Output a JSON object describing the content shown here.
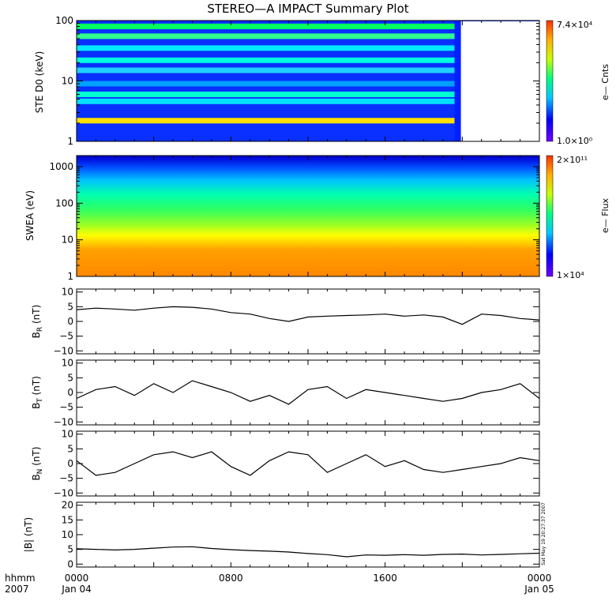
{
  "title": "STEREO—A IMPACT Summary Plot",
  "footer": {
    "row_label_1": "hhmm",
    "row_label_2": "2007"
  },
  "timestamp": "Sat May 19 20:27:37 2007",
  "chart_data": [
    {
      "type": "heatmap",
      "id": "ste",
      "ylabel": "STE D0 (keV)",
      "yscale": "log",
      "ylim": [
        1,
        100
      ],
      "yticks": [
        "1",
        "10",
        "100"
      ],
      "colorbar": {
        "label": "e— Cnts",
        "max": "7.4×10⁴",
        "min": "1.0×10⁰",
        "colormap": "rainbow"
      },
      "bands_keV": [
        2.2,
        4.6,
        6.0,
        9.0,
        15,
        22,
        35,
        55,
        80
      ],
      "data_gap_start_hour": 19.6
    },
    {
      "type": "heatmap",
      "id": "swea",
      "ylabel": "SWEA (eV)",
      "yscale": "log",
      "ylim": [
        1,
        2000
      ],
      "yticks": [
        "1",
        "10",
        "100",
        "1000"
      ],
      "colorbar": {
        "label": "e— Flux",
        "max": "2×10¹¹",
        "min": "1×10⁴",
        "colormap": "rainbow"
      }
    },
    {
      "type": "line",
      "id": "br",
      "ylabel": "B_R (nT)",
      "ylim": [
        -11,
        11
      ],
      "yticks": [
        "10",
        "5",
        "0",
        "−5",
        "−10"
      ],
      "x_hours": [
        0,
        1,
        2,
        3,
        4,
        5,
        6,
        7,
        8,
        9,
        10,
        11,
        12,
        13,
        14,
        15,
        16,
        17,
        18,
        19,
        20,
        21,
        22,
        23,
        24
      ],
      "values": [
        4,
        4.5,
        4.2,
        3.8,
        4.5,
        5,
        4.8,
        4.2,
        3,
        2.5,
        1,
        0,
        1.5,
        1.8,
        2,
        2.2,
        2.5,
        1.8,
        2.2,
        1.5,
        -1,
        2.5,
        2,
        1,
        0.5
      ]
    },
    {
      "type": "line",
      "id": "bt",
      "ylabel": "B_T (nT)",
      "ylim": [
        -11,
        11
      ],
      "yticks": [
        "10",
        "5",
        "0",
        "−5",
        "−10"
      ],
      "x_hours": [
        0,
        1,
        2,
        3,
        4,
        5,
        6,
        7,
        8,
        9,
        10,
        11,
        12,
        13,
        14,
        15,
        16,
        17,
        18,
        19,
        20,
        21,
        22,
        23,
        24
      ],
      "values": [
        -2,
        1,
        2,
        -1,
        3,
        0,
        4,
        2,
        0,
        -3,
        -1,
        -4,
        1,
        2,
        -2,
        1,
        0,
        -1,
        -2,
        -3,
        -2,
        0,
        1,
        3,
        -2
      ]
    },
    {
      "type": "line",
      "id": "bn",
      "ylabel": "B_N (nT)",
      "ylim": [
        -11,
        11
      ],
      "yticks": [
        "10",
        "5",
        "0",
        "−5",
        "−10"
      ],
      "x_hours": [
        0,
        1,
        2,
        3,
        4,
        5,
        6,
        7,
        8,
        9,
        10,
        11,
        12,
        13,
        14,
        15,
        16,
        17,
        18,
        19,
        20,
        21,
        22,
        23,
        24
      ],
      "values": [
        1,
        -4,
        -3,
        0,
        3,
        4,
        2,
        4,
        -1,
        -4,
        1,
        4,
        3,
        -3,
        0,
        3,
        -1,
        1,
        -2,
        -3,
        -2,
        -1,
        0,
        2,
        1
      ]
    },
    {
      "type": "line",
      "id": "bmag",
      "ylabel": "|B| (nT)",
      "ylim": [
        -1,
        21
      ],
      "yticks": [
        "20",
        "15",
        "10",
        "5",
        "0"
      ],
      "x_hours": [
        0,
        1,
        2,
        3,
        4,
        5,
        6,
        7,
        8,
        9,
        10,
        11,
        12,
        13,
        14,
        15,
        16,
        17,
        18,
        19,
        20,
        21,
        22,
        23,
        24
      ],
      "values": [
        5.2,
        5.0,
        4.8,
        5.0,
        5.4,
        5.8,
        5.9,
        5.3,
        4.9,
        4.6,
        4.4,
        4.1,
        3.6,
        3.2,
        2.5,
        3.1,
        3.0,
        3.2,
        3.0,
        3.3,
        3.4,
        3.1,
        3.3,
        3.5,
        3.7
      ]
    }
  ],
  "x_axis": {
    "range_hours": [
      0,
      24
    ],
    "ticks": [
      {
        "hour": 0,
        "label": "0000",
        "date": "Jan 04"
      },
      {
        "hour": 8,
        "label": "0800",
        "date": ""
      },
      {
        "hour": 16,
        "label": "1600",
        "date": ""
      },
      {
        "hour": 24,
        "label": "0000",
        "date": "Jan 05"
      }
    ]
  }
}
